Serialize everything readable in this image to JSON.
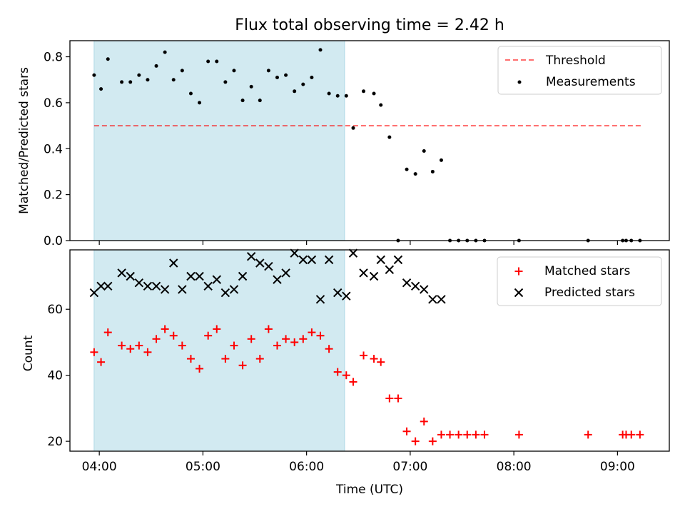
{
  "title": "Flux total observing time = 2.42 h",
  "colors": {
    "span": "#add8e6",
    "threshold": "#ff0000",
    "measurements": "#000000",
    "matched": "#ff0000",
    "predicted": "#000000"
  },
  "chart_data": [
    {
      "type": "scatter",
      "ylabel": "Matched/Predicted stars",
      "xlim": [
        "03:43",
        "09:30"
      ],
      "ylim": [
        0,
        0.87
      ],
      "yticks": [
        0.0,
        0.2,
        0.4,
        0.6,
        0.8
      ],
      "ytick_labels": [
        "0.0",
        "0.2",
        "0.4",
        "0.6",
        "0.8"
      ],
      "legend": {
        "placement": "top-right",
        "entries": [
          "Threshold",
          "Measurements"
        ]
      },
      "shaded_span": {
        "x": [
          "03:57",
          "06:22"
        ]
      },
      "threshold": {
        "name": "Threshold",
        "x": [
          "03:57",
          "09:15"
        ],
        "y": 0.5
      },
      "series": [
        {
          "name": "Measurements",
          "x": [
            "03:57",
            "04:01",
            "04:05",
            "04:13",
            "04:18",
            "04:23",
            "04:28",
            "04:33",
            "04:38",
            "04:43",
            "04:48",
            "04:53",
            "04:58",
            "05:03",
            "05:08",
            "05:13",
            "05:18",
            "05:23",
            "05:28",
            "05:33",
            "05:38",
            "05:43",
            "05:48",
            "05:53",
            "05:58",
            "06:03",
            "06:08",
            "06:13",
            "06:18",
            "06:23",
            "06:27",
            "06:33",
            "06:39",
            "06:43",
            "06:48",
            "06:53",
            "06:58",
            "07:03",
            "07:08",
            "07:13",
            "07:18",
            "07:23",
            "07:28",
            "07:33",
            "07:38",
            "07:43",
            "08:03",
            "08:43",
            "09:03",
            "09:05",
            "09:08",
            "09:13"
          ],
          "y": [
            0.72,
            0.66,
            0.79,
            0.69,
            0.69,
            0.72,
            0.7,
            0.76,
            0.82,
            0.7,
            0.74,
            0.64,
            0.6,
            0.78,
            0.78,
            0.69,
            0.74,
            0.61,
            0.67,
            0.61,
            0.74,
            0.71,
            0.72,
            0.65,
            0.68,
            0.71,
            0.83,
            0.64,
            0.63,
            0.63,
            0.49,
            0.65,
            0.64,
            0.59,
            0.45,
            0.0,
            0.31,
            0.29,
            0.39,
            0.3,
            0.35,
            0.0,
            0.0,
            0.0,
            0.0,
            0.0,
            0.0,
            0.0,
            0.0,
            0.0,
            0.0,
            0.0
          ]
        }
      ]
    },
    {
      "type": "scatter",
      "xlabel": "Time (UTC)",
      "ylabel": "Count",
      "xlim": [
        "03:43",
        "09:30"
      ],
      "ylim": [
        17,
        78
      ],
      "yticks": [
        20,
        40,
        60
      ],
      "ytick_labels": [
        "20",
        "40",
        "60"
      ],
      "xticks": [
        "04:00",
        "05:00",
        "06:00",
        "07:00",
        "08:00",
        "09:00"
      ],
      "xtick_labels": [
        "04:00",
        "05:00",
        "06:00",
        "07:00",
        "08:00",
        "09:00"
      ],
      "legend": {
        "placement": "top-right",
        "entries": [
          "Matched stars",
          "Predicted stars"
        ]
      },
      "shaded_span": {
        "x": [
          "03:57",
          "06:22"
        ]
      },
      "series": [
        {
          "name": "Matched stars",
          "x": [
            "03:57",
            "04:01",
            "04:05",
            "04:13",
            "04:18",
            "04:23",
            "04:28",
            "04:33",
            "04:38",
            "04:43",
            "04:48",
            "04:53",
            "04:58",
            "05:03",
            "05:08",
            "05:13",
            "05:18",
            "05:23",
            "05:28",
            "05:33",
            "05:38",
            "05:43",
            "05:48",
            "05:53",
            "05:58",
            "06:03",
            "06:08",
            "06:13",
            "06:18",
            "06:23",
            "06:27",
            "06:33",
            "06:39",
            "06:43",
            "06:48",
            "06:53",
            "06:58",
            "07:03",
            "07:08",
            "07:13",
            "07:18",
            "07:23",
            "07:28",
            "07:33",
            "07:38",
            "07:43",
            "08:03",
            "08:43",
            "09:03",
            "09:05",
            "09:08",
            "09:13"
          ],
          "y": [
            47,
            44,
            53,
            49,
            48,
            49,
            47,
            51,
            54,
            52,
            49,
            45,
            42,
            52,
            54,
            45,
            49,
            43,
            51,
            45,
            54,
            49,
            51,
            50,
            51,
            53,
            52,
            48,
            41,
            40,
            38,
            46,
            45,
            44,
            33,
            33,
            23,
            20,
            26,
            20,
            22,
            22,
            22,
            22,
            22,
            22,
            22,
            22,
            22,
            22,
            22,
            22
          ]
        },
        {
          "name": "Predicted stars",
          "x": [
            "03:57",
            "04:01",
            "04:05",
            "04:13",
            "04:18",
            "04:23",
            "04:28",
            "04:33",
            "04:38",
            "04:43",
            "04:48",
            "04:53",
            "04:58",
            "05:03",
            "05:08",
            "05:13",
            "05:18",
            "05:23",
            "05:28",
            "05:33",
            "05:38",
            "05:43",
            "05:48",
            "05:53",
            "05:58",
            "06:03",
            "06:08",
            "06:13",
            "06:18",
            "06:23",
            "06:27",
            "06:33",
            "06:39",
            "06:43",
            "06:48",
            "06:53",
            "06:58",
            "07:03",
            "07:08",
            "07:13",
            "07:18"
          ],
          "y": [
            65,
            67,
            67,
            71,
            70,
            68,
            67,
            67,
            66,
            74,
            66,
            70,
            70,
            67,
            69,
            65,
            66,
            70,
            76,
            74,
            73,
            69,
            71,
            77,
            75,
            75,
            63,
            75,
            65,
            64,
            77,
            71,
            70,
            75,
            72,
            75,
            68,
            67,
            66,
            63,
            63
          ]
        }
      ]
    }
  ]
}
